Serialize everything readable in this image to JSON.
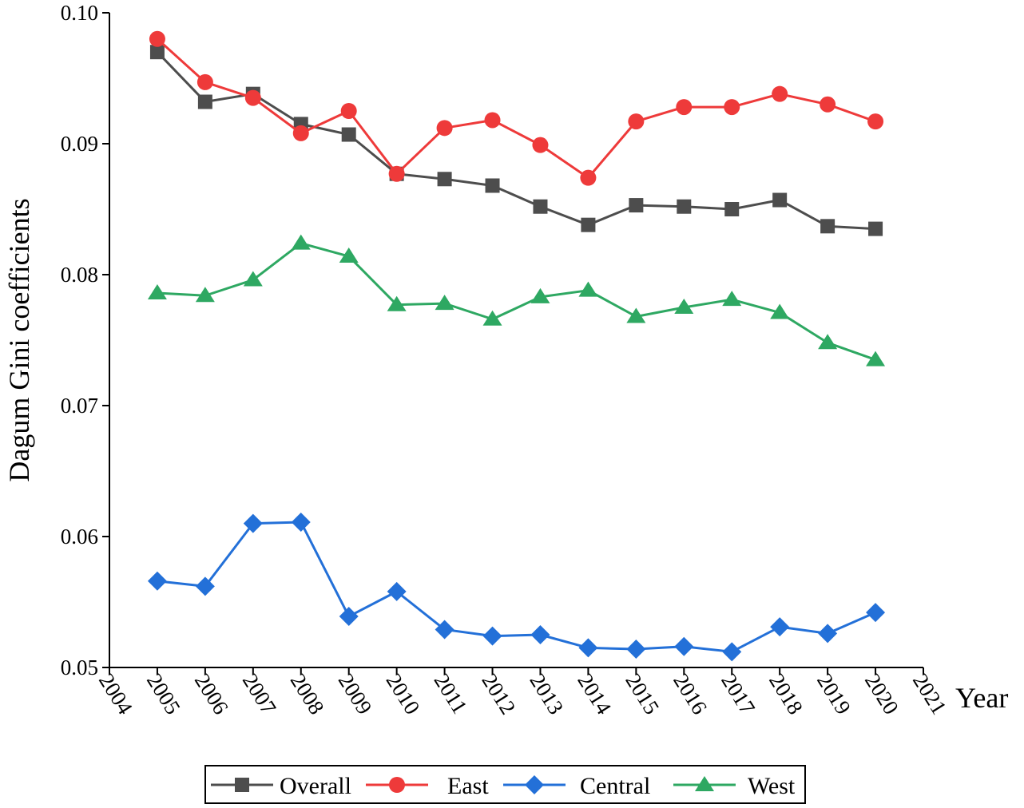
{
  "chart_data": {
    "type": "line",
    "title": "",
    "xlabel": "Year",
    "ylabel": "Dagum Gini coefficients",
    "xlim": [
      2004,
      2021
    ],
    "ylim": [
      0.05,
      0.1
    ],
    "x_ticks": [
      "2004",
      "2005",
      "2006",
      "2007",
      "2008",
      "2009",
      "2010",
      "2011",
      "2012",
      "2013",
      "2014",
      "2015",
      "2016",
      "2017",
      "2018",
      "2019",
      "2020",
      "2021"
    ],
    "y_ticks": [
      "0.05",
      "0.06",
      "0.07",
      "0.08",
      "0.09",
      "0.10"
    ],
    "legend_position": "bottom",
    "x": [
      2005,
      2006,
      2007,
      2008,
      2009,
      2010,
      2011,
      2012,
      2013,
      2014,
      2015,
      2016,
      2017,
      2018,
      2019,
      2020
    ],
    "series": [
      {
        "name": "Overall",
        "color": "#4d4d4d",
        "marker": "square",
        "values": [
          0.097,
          0.0932,
          0.0938,
          0.0915,
          0.0907,
          0.0877,
          0.0873,
          0.0868,
          0.0852,
          0.0838,
          0.0853,
          0.0852,
          0.085,
          0.0857,
          0.0837,
          0.0835
        ]
      },
      {
        "name": "East",
        "color": "#ee3a3a",
        "marker": "circle",
        "values": [
          0.098,
          0.0947,
          0.0935,
          0.0908,
          0.0925,
          0.0877,
          0.0912,
          0.0918,
          0.0899,
          0.0874,
          0.0917,
          0.0928,
          0.0928,
          0.0938,
          0.093,
          0.0917
        ]
      },
      {
        "name": "Central",
        "color": "#2370d8",
        "marker": "diamond",
        "values": [
          0.0566,
          0.0562,
          0.061,
          0.0611,
          0.0539,
          0.0558,
          0.0529,
          0.0524,
          0.0525,
          0.0515,
          0.0514,
          0.0516,
          0.0512,
          0.0531,
          0.0526,
          0.0542
        ]
      },
      {
        "name": "West",
        "color": "#2ea862",
        "marker": "triangle",
        "values": [
          0.0786,
          0.0784,
          0.0796,
          0.0824,
          0.0814,
          0.0777,
          0.0778,
          0.0766,
          0.0783,
          0.0788,
          0.0768,
          0.0775,
          0.0781,
          0.0771,
          0.0748,
          0.0735
        ]
      }
    ]
  }
}
